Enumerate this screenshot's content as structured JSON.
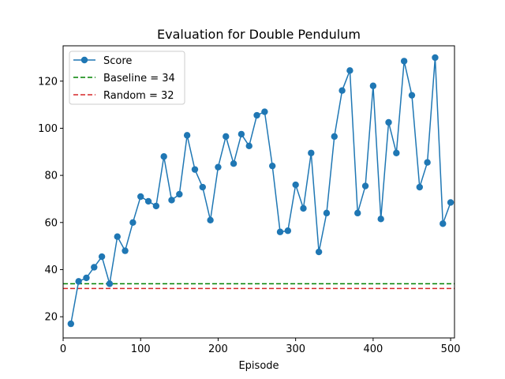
{
  "chart_data": {
    "type": "line",
    "title": "Evaluation for Double Pendulum",
    "xlabel": "Episode",
    "ylabel": "",
    "xlim": [
      0,
      505
    ],
    "ylim": [
      11,
      135
    ],
    "xticks": [
      0,
      100,
      200,
      300,
      400,
      500
    ],
    "yticks": [
      20,
      40,
      60,
      80,
      100,
      120
    ],
    "grid": false,
    "legend_position": "top-left",
    "series": [
      {
        "name": "Score",
        "color": "#1f77b4",
        "marker": "circle",
        "x": [
          10,
          20,
          30,
          40,
          50,
          60,
          70,
          80,
          90,
          100,
          110,
          120,
          130,
          140,
          150,
          160,
          170,
          180,
          190,
          200,
          210,
          220,
          230,
          240,
          250,
          260,
          270,
          280,
          290,
          300,
          310,
          320,
          330,
          340,
          350,
          360,
          370,
          380,
          390,
          400,
          410,
          420,
          430,
          440,
          450,
          460,
          470,
          480,
          490,
          500
        ],
        "values": [
          17,
          35,
          36.5,
          41,
          45.5,
          34,
          54,
          48,
          60,
          71,
          69,
          67,
          88,
          69.5,
          72,
          97,
          82.5,
          75,
          61,
          83.5,
          96.5,
          85,
          97.5,
          92.5,
          105.5,
          107,
          84,
          56,
          56.5,
          76,
          66,
          89.5,
          47.5,
          64,
          96.5,
          116,
          124.5,
          64,
          75.5,
          118,
          61.5,
          102.5,
          89.5,
          128.5,
          114,
          75,
          85.5,
          130,
          59.5,
          68.5
        ]
      }
    ],
    "reference_lines": [
      {
        "name": "Baseline = 34",
        "y": 34,
        "color": "#008000",
        "style": "dashed"
      },
      {
        "name": "Random = 32",
        "y": 32,
        "color": "#d62728",
        "style": "dashed"
      }
    ]
  }
}
